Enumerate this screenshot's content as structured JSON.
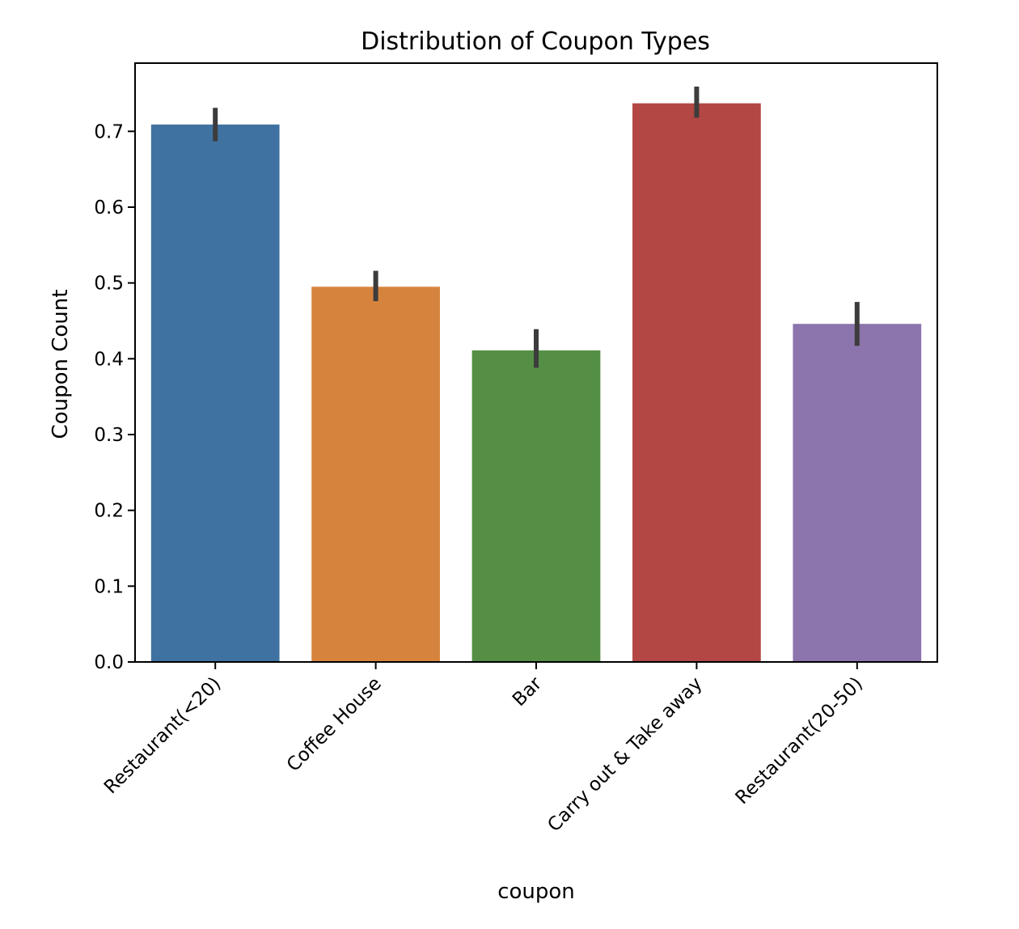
{
  "chart_data": {
    "type": "bar",
    "title": "Distribution of Coupon Types",
    "xlabel": "coupon",
    "ylabel": "Coupon Count",
    "categories": [
      "Restaurant(<20)",
      "Coffee House",
      "Bar",
      "Carry out & Take away",
      "Restaurant(20-50)"
    ],
    "values": [
      0.709,
      0.495,
      0.411,
      0.737,
      0.446
    ],
    "error_low": [
      0.687,
      0.476,
      0.388,
      0.718,
      0.417
    ],
    "error_high": [
      0.731,
      0.516,
      0.439,
      0.759,
      0.475
    ],
    "colors": [
      "#3f72a0",
      "#d6843d",
      "#548f45",
      "#b24744",
      "#8c74ad"
    ],
    "error_color": "#3c3c3c",
    "ylim": [
      0,
      0.79
    ],
    "yticks": [
      0.0,
      0.1,
      0.2,
      0.3,
      0.4,
      0.5,
      0.6,
      0.7
    ],
    "ytick_labels": [
      "0.0",
      "0.1",
      "0.2",
      "0.3",
      "0.4",
      "0.5",
      "0.6",
      "0.7"
    ],
    "grid": false,
    "legend": "none"
  }
}
